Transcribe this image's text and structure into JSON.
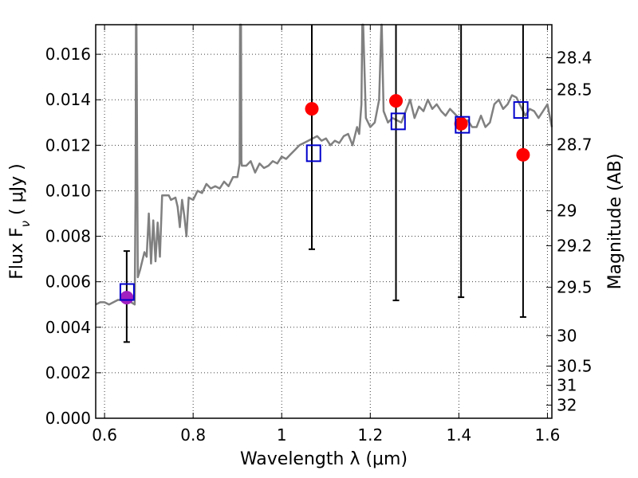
{
  "chart_data": {
    "type": "scatter",
    "xlabel": "Wavelength  λ (μm)",
    "ylabel": "Flux  F",
    "ylabel_sub": "ν",
    "ylabel_unit": "  ( μJy )",
    "y2label": "Magnitude (AB)",
    "xlim": [
      0.58,
      1.61
    ],
    "ylim": [
      0.0,
      0.0173
    ],
    "grid": true,
    "x_ticks": [
      0.6,
      0.8,
      1.0,
      1.2,
      1.4,
      1.6
    ],
    "x_tick_labels": [
      "0.6",
      "0.8",
      "1",
      "1.2",
      "1.4",
      "1.6"
    ],
    "y_ticks": [
      0.0,
      0.002,
      0.004,
      0.006,
      0.008,
      0.01,
      0.012,
      0.014,
      0.016
    ],
    "y_tick_labels": [
      "0.000",
      "0.002",
      "0.004",
      "0.006",
      "0.008",
      "0.010",
      "0.012",
      "0.014",
      "0.016"
    ],
    "y2_ticks": [
      28.4,
      28.5,
      28.7,
      29,
      29.2,
      29.5,
      30,
      30.5,
      31,
      32
    ],
    "y2_tick_labels": [
      "28.4",
      "28.5",
      "28.7",
      "29",
      "29.2",
      "29.5",
      "30",
      "30.5",
      "31",
      "32"
    ],
    "colors": {
      "model": "#808080",
      "observed": "#ff0000",
      "observed_highlight": "#a020c0",
      "synthetic": "#0000cc",
      "errorbar": "#000000"
    },
    "model_spectrum": {
      "x": [
        0.58,
        0.59,
        0.6,
        0.61,
        0.62,
        0.63,
        0.64,
        0.65,
        0.66,
        0.668,
        0.67,
        0.671,
        0.672,
        0.675,
        0.68,
        0.69,
        0.695,
        0.7,
        0.705,
        0.71,
        0.715,
        0.72,
        0.725,
        0.73,
        0.74,
        0.745,
        0.75,
        0.76,
        0.765,
        0.77,
        0.775,
        0.78,
        0.785,
        0.79,
        0.8,
        0.81,
        0.82,
        0.83,
        0.84,
        0.85,
        0.86,
        0.87,
        0.88,
        0.89,
        0.9,
        0.905,
        0.906,
        0.908,
        0.909,
        0.91,
        0.92,
        0.93,
        0.94,
        0.95,
        0.96,
        0.97,
        0.98,
        0.99,
        1.0,
        1.01,
        1.02,
        1.03,
        1.04,
        1.05,
        1.06,
        1.07,
        1.08,
        1.09,
        1.1,
        1.11,
        1.12,
        1.13,
        1.14,
        1.15,
        1.16,
        1.17,
        1.175,
        1.18,
        1.182,
        1.184,
        1.19,
        1.2,
        1.21,
        1.22,
        1.225,
        1.226,
        1.23,
        1.24,
        1.25,
        1.26,
        1.27,
        1.28,
        1.29,
        1.3,
        1.31,
        1.32,
        1.33,
        1.34,
        1.35,
        1.36,
        1.37,
        1.38,
        1.39,
        1.4,
        1.41,
        1.42,
        1.43,
        1.44,
        1.45,
        1.46,
        1.47,
        1.48,
        1.49,
        1.5,
        1.51,
        1.52,
        1.53,
        1.54,
        1.55,
        1.56,
        1.57,
        1.58,
        1.59,
        1.6,
        1.61
      ],
      "y": [
        0.005,
        0.0051,
        0.0051,
        0.005,
        0.0051,
        0.0052,
        0.0052,
        0.0052,
        0.0051,
        0.005,
        0.01,
        0.0173,
        0.0173,
        0.0062,
        0.0065,
        0.0073,
        0.0071,
        0.009,
        0.0068,
        0.0087,
        0.0069,
        0.0086,
        0.0071,
        0.0098,
        0.0098,
        0.0098,
        0.0096,
        0.0097,
        0.0093,
        0.0084,
        0.0096,
        0.0089,
        0.008,
        0.0097,
        0.0096,
        0.01,
        0.0099,
        0.0103,
        0.0101,
        0.0102,
        0.0101,
        0.0104,
        0.0102,
        0.0106,
        0.0106,
        0.0112,
        0.0173,
        0.0173,
        0.0113,
        0.0111,
        0.0111,
        0.0113,
        0.0108,
        0.0112,
        0.011,
        0.0111,
        0.0113,
        0.0112,
        0.0115,
        0.0114,
        0.0116,
        0.0118,
        0.012,
        0.0121,
        0.0122,
        0.0123,
        0.0124,
        0.0122,
        0.0123,
        0.012,
        0.0122,
        0.0121,
        0.0124,
        0.0125,
        0.012,
        0.0128,
        0.0125,
        0.0138,
        0.0173,
        0.0173,
        0.0132,
        0.0128,
        0.013,
        0.014,
        0.0173,
        0.0173,
        0.0135,
        0.013,
        0.0132,
        0.0131,
        0.013,
        0.0135,
        0.014,
        0.0132,
        0.0137,
        0.0135,
        0.014,
        0.0136,
        0.0138,
        0.0135,
        0.0133,
        0.0136,
        0.0134,
        0.0132,
        0.0129,
        0.0131,
        0.0128,
        0.0128,
        0.0133,
        0.0128,
        0.013,
        0.0138,
        0.014,
        0.0136,
        0.0138,
        0.0142,
        0.0141,
        0.0137,
        0.0133,
        0.0136,
        0.0135,
        0.0132,
        0.0135,
        0.0138,
        0.0128
      ]
    },
    "observed": {
      "x": [
        0.65,
        1.068,
        1.258,
        1.405,
        1.545
      ],
      "y": [
        0.0053,
        0.0136,
        0.01395,
        0.01295,
        0.01158
      ],
      "err_low": [
        0.00335,
        0.00743,
        0.00518,
        0.00532,
        0.00445
      ],
      "err_high": [
        0.00735,
        0.0173,
        0.0173,
        0.0173,
        0.0173
      ],
      "highlight": [
        true,
        false,
        false,
        false,
        false
      ]
    },
    "synthetic": {
      "x": [
        0.651,
        1.072,
        1.263,
        1.408,
        1.54
      ],
      "y": [
        0.00555,
        0.01165,
        0.01305,
        0.0129,
        0.01355
      ]
    }
  }
}
